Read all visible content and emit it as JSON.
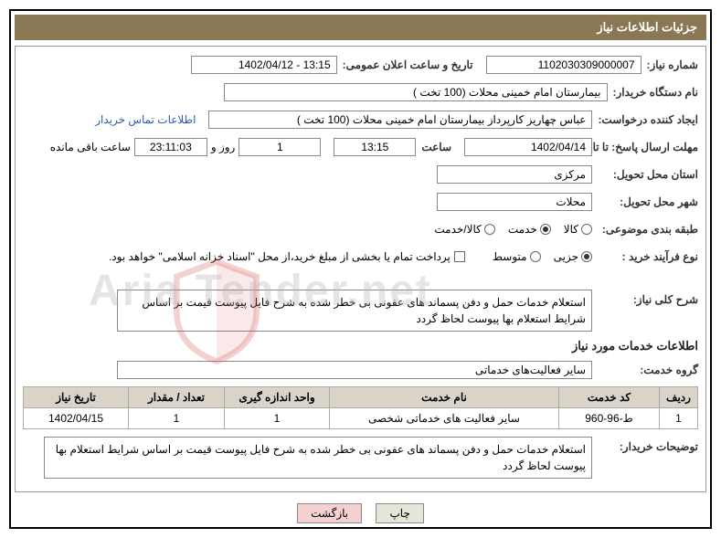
{
  "header": {
    "title": "جزئیات اطلاعات نیاز"
  },
  "fields": {
    "need_number": {
      "label": "شماره نیاز:",
      "value": "1102030309000007"
    },
    "announce_datetime": {
      "label": "تاریخ و ساعت اعلان عمومی:",
      "value": "13:15 - 1402/04/12"
    },
    "buyer_org": {
      "label": "نام دستگاه خریدار:",
      "value": "بیمارستان امام خمینی محلات (100 تخت )"
    },
    "creator": {
      "label": "ایجاد کننده درخواست:",
      "value": "عباس چهاریز کارپرداز  بیمارستان امام خمینی محلات (100 تخت )"
    },
    "creator_link": "اطلاعات تماس خریدار",
    "deadline": {
      "label": "مهلت ارسال پاسخ: تا تاریخ:",
      "date": "1402/04/14",
      "time_label": "ساعت",
      "time": "13:15",
      "days": "1",
      "days_label": "روز و",
      "hms": "23:11:03",
      "remaining_label": "ساعت باقی مانده"
    },
    "delivery_province": {
      "label": "استان محل تحویل:",
      "value": "مرکزی"
    },
    "delivery_city": {
      "label": "شهر محل تحویل:",
      "value": "محلات"
    },
    "category": {
      "label": "طبقه بندی موضوعی:",
      "options": [
        {
          "label": "کالا",
          "checked": false
        },
        {
          "label": "خدمت",
          "checked": true
        },
        {
          "label": "کالا/خدمت",
          "checked": false
        }
      ]
    },
    "purchase_type": {
      "label": "نوع فرآیند خرید :",
      "options": [
        {
          "label": "جزیی",
          "checked": true
        },
        {
          "label": "متوسط",
          "checked": false
        }
      ],
      "note": "پرداخت تمام یا بخشی از مبلغ خرید،از محل \"اسناد خزانه اسلامی\" خواهد بود."
    },
    "overview": {
      "label": "شرح کلی نیاز:",
      "value": "استعلام خدمات حمل و دفن پسماند های عفونی بی خطر شده به شرح فایل پیوست قیمت بر اساس شرایط استعلام بها پیوست لحاظ گردد"
    },
    "service_info_title": "اطلاعات خدمات مورد نیاز",
    "service_group": {
      "label": "گروه خدمت:",
      "value": "سایر فعالیت‌های خدماتی"
    },
    "buyer_desc": {
      "label": "توضیحات خریدار:",
      "value": "استعلام خدمات حمل و دفن پسماند های عفونی بی خطر شده به شرح فایل پیوست قیمت بر اساس شرایط استعلام بها پیوست لحاظ گردد"
    }
  },
  "table": {
    "columns": [
      "ردیف",
      "کد خدمت",
      "نام خدمت",
      "واحد اندازه گیری",
      "تعداد / مقدار",
      "تاریخ نیاز"
    ],
    "rows": [
      [
        "1",
        "ط-96-960",
        "سایر فعالیت های خدماتی شخصی",
        "1",
        "1",
        "1402/04/15"
      ]
    ],
    "col_widths": [
      "42px",
      "110px",
      "auto",
      "115px",
      "105px",
      "115px"
    ]
  },
  "buttons": {
    "print": "چاپ",
    "back": "بازگشت"
  },
  "watermark": "Aria Tender.net",
  "colors": {
    "header_bg": "#8a7754",
    "th_bg": "#d9d4c7",
    "link": "#2a5db0",
    "btn_back_bg": "#f4d0d0"
  }
}
